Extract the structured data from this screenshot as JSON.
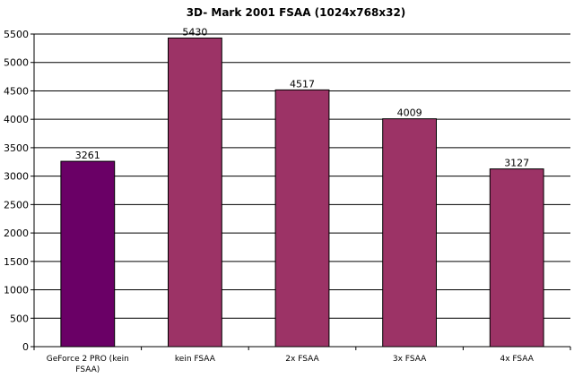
{
  "chart_data": {
    "type": "bar",
    "title": "3D- Mark 2001 FSAA (1024x768x32)",
    "xlabel": "",
    "ylabel": "",
    "categories": [
      "GeForce 2 PRO (kein FSAA)",
      "kein FSAA",
      "2x FSAA",
      "3x FSAA",
      "4x FSAA"
    ],
    "category_lines": [
      [
        "GeForce 2 PRO (kein",
        "FSAA)"
      ],
      [
        "kein FSAA"
      ],
      [
        "2x FSAA"
      ],
      [
        "3x FSAA"
      ],
      [
        "4x FSAA"
      ]
    ],
    "values": [
      3261,
      5430,
      4517,
      4009,
      3127
    ],
    "data_labels": [
      "3261",
      "5430",
      "4517",
      "4009",
      "3127"
    ],
    "bar_colors": [
      "#6a0066",
      "#9c3366",
      "#9c3366",
      "#9c3366",
      "#9c3366"
    ],
    "ylim": [
      0,
      5500
    ],
    "yticks": [
      "0",
      "500",
      "1000",
      "1500",
      "2000",
      "2500",
      "3000",
      "3500",
      "4000",
      "4500",
      "5000",
      "5500"
    ],
    "grid": true,
    "legend": false
  }
}
